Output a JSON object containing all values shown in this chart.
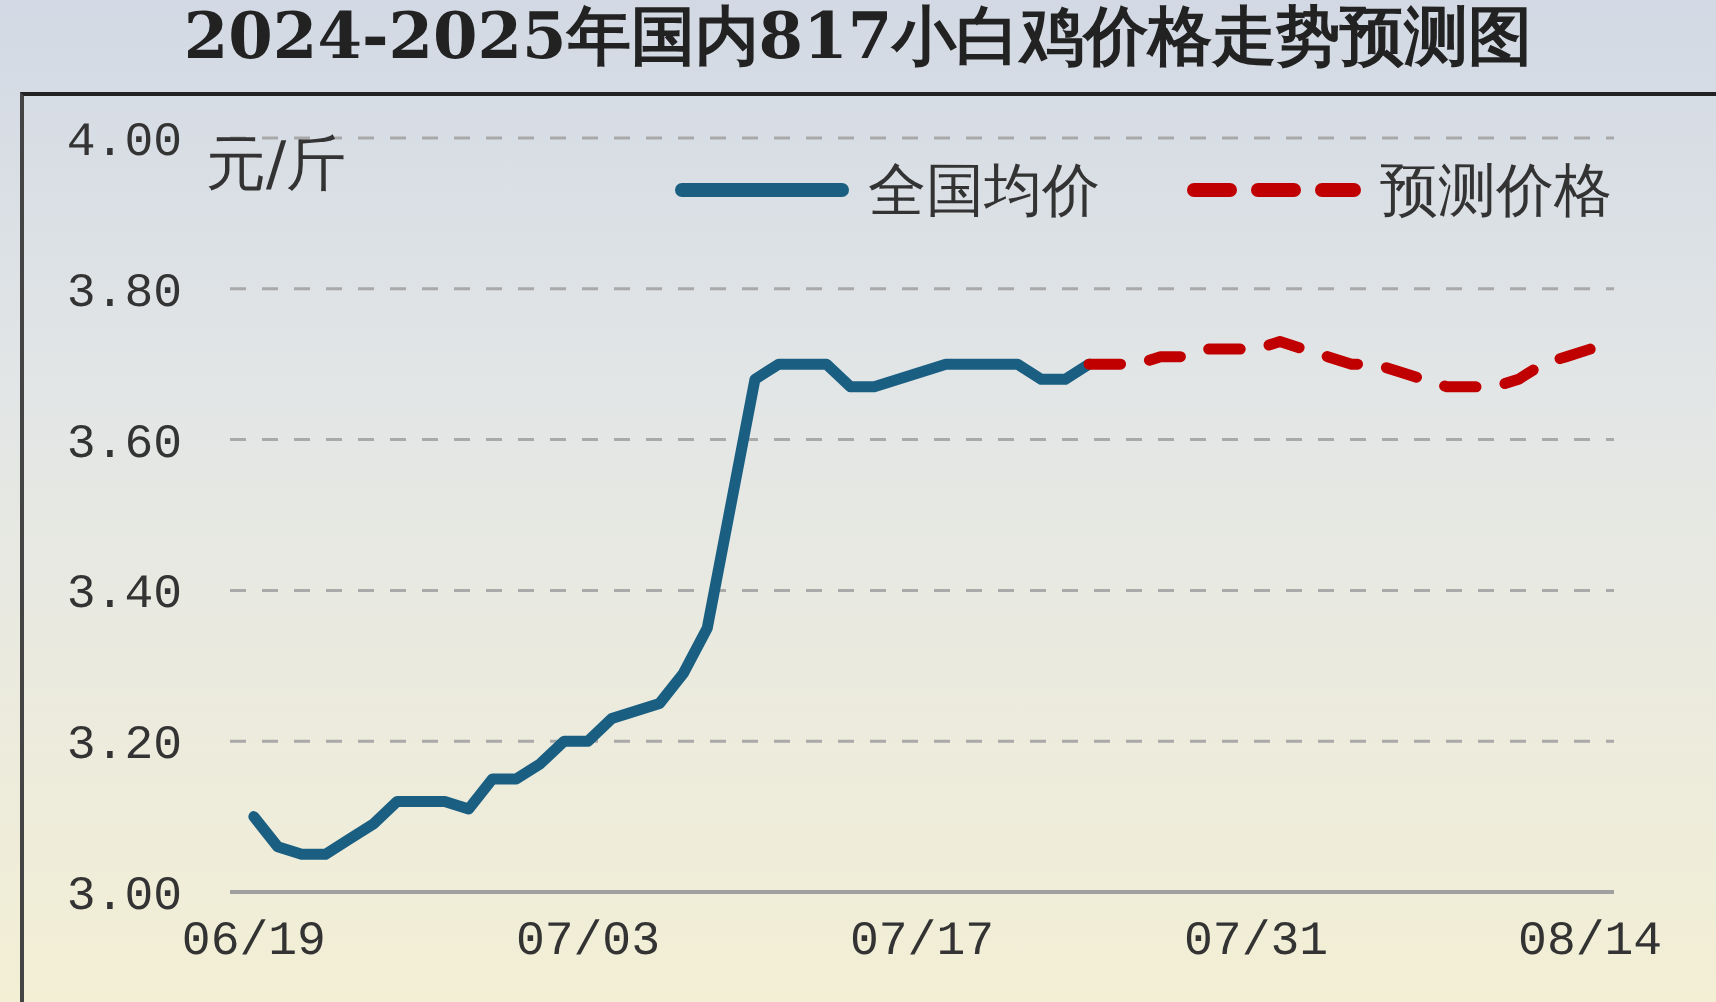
{
  "chart_data": {
    "type": "line",
    "title": "2024-2025年国内817小白鸡价格走势预测图",
    "ylabel": "元/斤",
    "xlim": [
      "--06-18",
      "--08-15"
    ],
    "xticks": [
      {
        "value": "--06-19",
        "label": "06/19"
      },
      {
        "value": "--07-03",
        "label": "07/03"
      },
      {
        "value": "--07-17",
        "label": "07/17"
      },
      {
        "value": "--07-31",
        "label": "07/31"
      },
      {
        "value": "--08-14",
        "label": "08/14"
      }
    ],
    "ylim": [
      3.0,
      4.0
    ],
    "yticks": [
      {
        "value": 3.0,
        "label": "3.00"
      },
      {
        "value": 3.2,
        "label": "3.20"
      },
      {
        "value": 3.4,
        "label": "3.40"
      },
      {
        "value": 3.6,
        "label": "3.60"
      },
      {
        "value": 3.8,
        "label": "3.80"
      },
      {
        "value": 4.0,
        "label": "4.00"
      }
    ],
    "grid": "y",
    "legend": "top right",
    "series": [
      {
        "name": "全国均价",
        "color": "#1a5f82",
        "line_style": "solid",
        "x": [
          "--06-19",
          "--06-20",
          "--06-21",
          "--06-22",
          "--06-23",
          "--06-24",
          "--06-25",
          "--06-26",
          "--06-27",
          "--06-28",
          "--06-29",
          "--06-30",
          "--07-01",
          "--07-02",
          "--07-03",
          "--07-04",
          "--07-05",
          "--07-06",
          "--07-07",
          "--07-08",
          "--07-10",
          "--07-11",
          "--07-12",
          "--07-13",
          "--07-14",
          "--07-15",
          "--07-16",
          "--07-17",
          "--07-18",
          "--07-19",
          "--07-20",
          "--07-21",
          "--07-22",
          "--07-23",
          "--07-24"
        ],
        "values": [
          3.1,
          3.06,
          3.05,
          3.05,
          3.07,
          3.09,
          3.12,
          3.12,
          3.12,
          3.11,
          3.15,
          3.15,
          3.17,
          3.2,
          3.2,
          3.23,
          3.24,
          3.25,
          3.29,
          3.35,
          3.68,
          3.7,
          3.7,
          3.7,
          3.67,
          3.67,
          3.68,
          3.69,
          3.7,
          3.7,
          3.7,
          3.7,
          3.68,
          3.68,
          3.7
        ]
      },
      {
        "name": "预测价格",
        "color": "#c00000",
        "line_style": "dashed",
        "x": [
          "--07-24",
          "--07-25",
          "--07-26",
          "--07-27",
          "--07-28",
          "--07-29",
          "--07-30",
          "--07-31",
          "--08-01",
          "--08-02",
          "--08-03",
          "--08-04",
          "--08-05",
          "--08-06",
          "--08-07",
          "--08-08",
          "--08-09",
          "--08-10",
          "--08-11",
          "--08-12",
          "--08-13",
          "--08-14"
        ],
        "values": [
          3.7,
          3.7,
          3.7,
          3.71,
          3.71,
          3.72,
          3.72,
          3.72,
          3.73,
          3.72,
          3.71,
          3.7,
          3.7,
          3.69,
          3.68,
          3.67,
          3.67,
          3.67,
          3.68,
          3.7,
          3.71,
          3.72
        ]
      }
    ]
  }
}
